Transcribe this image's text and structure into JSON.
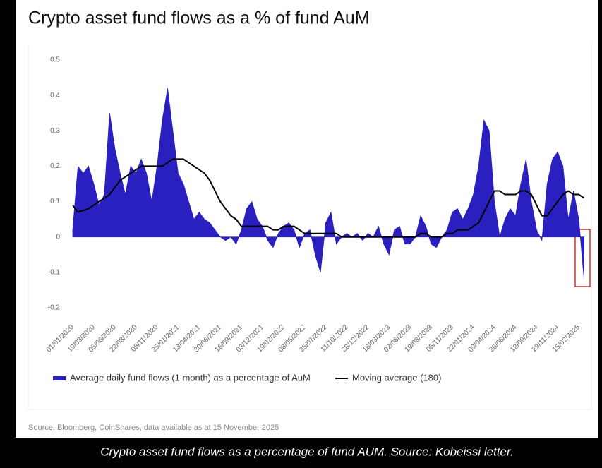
{
  "chart_data": {
    "type": "area",
    "title": "Crypto asset fund flows as a % of fund AuM",
    "source": "Source: Bloomberg, CoinShares, data available as at 15 November 2025",
    "caption": "Crypto asset fund flows as a percentage of fund AUM. Source: Kobeissi letter.",
    "categories": [
      "01/01/2020",
      null,
      null,
      null,
      "19/03/2020",
      null,
      null,
      null,
      "05/06/2020",
      null,
      null,
      null,
      "22/08/2020",
      null,
      null,
      null,
      "08/11/2020",
      null,
      null,
      null,
      "25/01/2021",
      null,
      null,
      null,
      "13/04/2021",
      null,
      null,
      null,
      "30/06/2021",
      null,
      null,
      null,
      "16/09/2021",
      null,
      null,
      null,
      "03/12/2021",
      null,
      null,
      null,
      "19/02/2022",
      null,
      null,
      null,
      "08/05/2022",
      null,
      null,
      null,
      "25/07/2022",
      null,
      null,
      null,
      "11/10/2022",
      null,
      null,
      null,
      "28/12/2022",
      null,
      null,
      null,
      "16/03/2023",
      null,
      null,
      null,
      "02/06/2023",
      null,
      null,
      null,
      "19/08/2023",
      null,
      null,
      null,
      "05/11/2023",
      null,
      null,
      null,
      "22/01/2024",
      null,
      null,
      null,
      "09/04/2024",
      null,
      null,
      null,
      "26/06/2024",
      null,
      null,
      null,
      "12/09/2024",
      null,
      null,
      null,
      "29/11/2024",
      null,
      null,
      null,
      "15/02/2025",
      null
    ],
    "series": [
      {
        "name": "Average daily fund flows (1 month) as a percentage of AuM",
        "color": "#2a1fbf",
        "kind": "area",
        "values": [
          0.02,
          0.2,
          0.18,
          0.2,
          0.15,
          0.09,
          0.12,
          0.35,
          0.25,
          0.18,
          0.12,
          0.2,
          0.18,
          0.22,
          0.18,
          0.1,
          0.2,
          0.33,
          0.42,
          0.3,
          0.18,
          0.15,
          0.1,
          0.05,
          0.07,
          0.05,
          0.04,
          0.02,
          0.0,
          -0.01,
          0.0,
          -0.02,
          0.02,
          0.08,
          0.1,
          0.05,
          0.03,
          -0.01,
          -0.03,
          0.01,
          0.03,
          0.04,
          0.02,
          -0.03,
          0.01,
          0.02,
          -0.05,
          -0.1,
          0.04,
          0.07,
          -0.02,
          0.0,
          0.01,
          0.0,
          0.01,
          -0.01,
          0.01,
          0.0,
          0.03,
          -0.02,
          -0.05,
          0.02,
          0.03,
          -0.02,
          -0.02,
          0.0,
          0.06,
          0.03,
          -0.02,
          -0.03,
          0.0,
          0.02,
          0.07,
          0.08,
          0.05,
          0.08,
          0.12,
          0.2,
          0.33,
          0.3,
          0.1,
          0.0,
          0.05,
          0.08,
          0.06,
          0.15,
          0.22,
          0.1,
          0.02,
          -0.01,
          0.15,
          0.22,
          0.24,
          0.2,
          0.05,
          0.13,
          0.05,
          -0.12
        ]
      },
      {
        "name": "Moving average (180)",
        "color": "#000000",
        "kind": "line",
        "values": [
          0.09,
          0.07,
          0.075,
          0.08,
          0.09,
          0.1,
          0.11,
          0.12,
          0.14,
          0.16,
          0.17,
          0.18,
          0.19,
          0.2,
          0.2,
          0.2,
          0.2,
          0.2,
          0.21,
          0.22,
          0.22,
          0.22,
          0.21,
          0.2,
          0.19,
          0.18,
          0.16,
          0.13,
          0.1,
          0.08,
          0.06,
          0.05,
          0.03,
          0.03,
          0.03,
          0.03,
          0.03,
          0.03,
          0.02,
          0.02,
          0.03,
          0.03,
          0.03,
          0.02,
          0.01,
          0.01,
          0.01,
          0.01,
          0.01,
          0.01,
          0.01,
          0,
          0,
          0,
          0,
          0,
          0,
          0,
          0,
          0,
          0,
          0,
          0,
          0,
          0,
          0,
          0.01,
          0.01,
          0,
          0,
          0,
          0.01,
          0.01,
          0.02,
          0.02,
          0.02,
          0.03,
          0.04,
          0.07,
          0.1,
          0.13,
          0.13,
          0.12,
          0.12,
          0.12,
          0.13,
          0.13,
          0.12,
          0.09,
          0.06,
          0.06,
          0.08,
          0.1,
          0.12,
          0.13,
          0.12,
          0.12,
          0.11
        ]
      }
    ],
    "ylim": [
      -0.2,
      0.5
    ],
    "yticks": [
      0.5,
      0.4,
      0.3,
      0.2,
      0.1,
      0,
      -0.1,
      -0.2
    ],
    "grid": false,
    "legend": "bottom"
  }
}
